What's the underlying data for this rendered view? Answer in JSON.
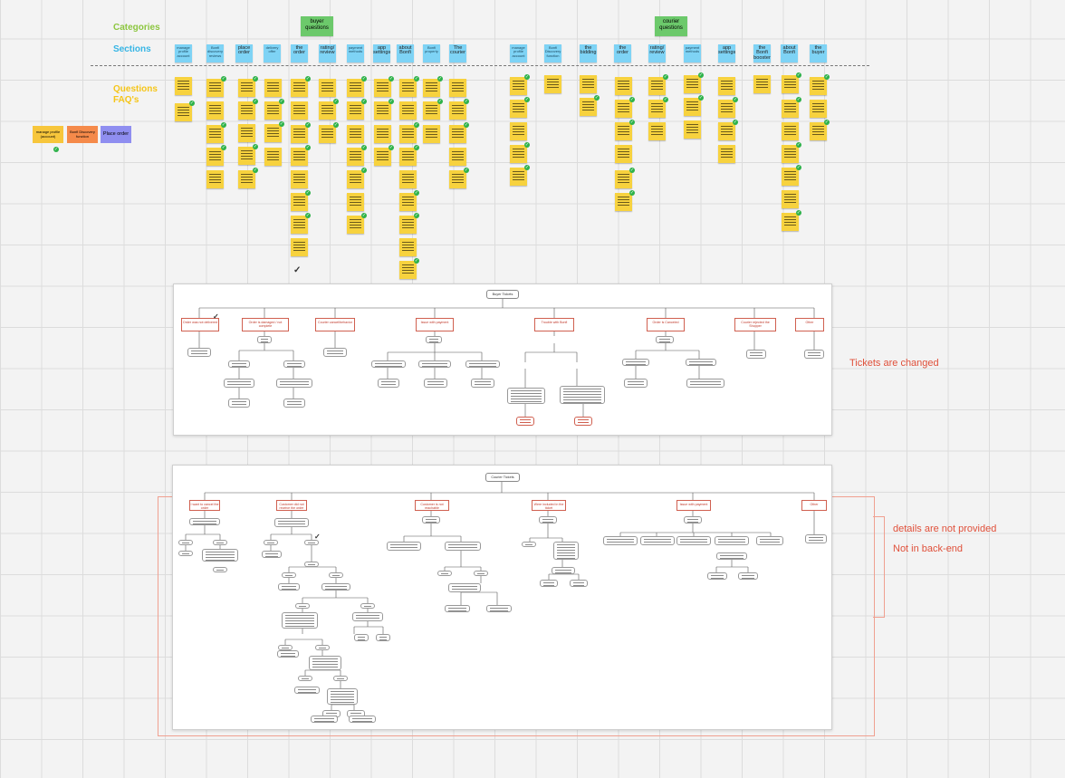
{
  "labels": {
    "categories": "Categories",
    "sections": "Sections",
    "questions": "Questions\nFAQ's"
  },
  "category_tags": [
    {
      "text": "buyer\nquestions"
    },
    {
      "text": "courier\nquestions"
    }
  ],
  "legend": [
    {
      "text": "manage profile\n(account)",
      "color": "#f7c63b"
    },
    {
      "text": "Bonfi Discovery\nfunction",
      "color": "#f58a4a"
    },
    {
      "text": "Place order",
      "color": "#8f8ef0"
    }
  ],
  "sections": [
    "manage profile account",
    "Bonfi discovery reviews",
    "place order",
    "delivery offer",
    "the order",
    "rating/ review",
    "payment methods",
    "app settings",
    "about Bonfi",
    "Bonfi property",
    "The courier",
    "manage profile account",
    "Bonfi Discovery function",
    "the bidding",
    "the order",
    "rating/ review",
    "payment methods",
    "app settings",
    "the Bonfi booster",
    "about Bonfi",
    "the buyer"
  ],
  "boards": {
    "buyer_title": "Buyer Tickets",
    "courier_title": "Courier Tickets",
    "buyer_nodes": [
      "Order was not delivered",
      "Order is damaged / not complete",
      "Courier cancel/behavior",
      "Issue with payment",
      "Trouble with Bonfi",
      "Order is Canceled",
      "Courier rejected the Shopper",
      "Other"
    ],
    "courier_nodes": [
      "I want to cancel the order",
      "Customer did not receive the order",
      "Customer is not reachable",
      "Were included in the ticket",
      "Issue with payment",
      "Other"
    ]
  },
  "notes": {
    "tickets_changed": "Tickets are changed",
    "details_not_provided": "details are not provided",
    "not_in_backend": "Not in back-end"
  },
  "colors": {
    "sticky": "#f7d23e",
    "section": "#7ed3f5",
    "category": "#6cc96b",
    "note": "#e0503a",
    "label_green": "#8cc63f",
    "label_blue": "#36b5e5",
    "label_yellow": "#f5c518"
  }
}
